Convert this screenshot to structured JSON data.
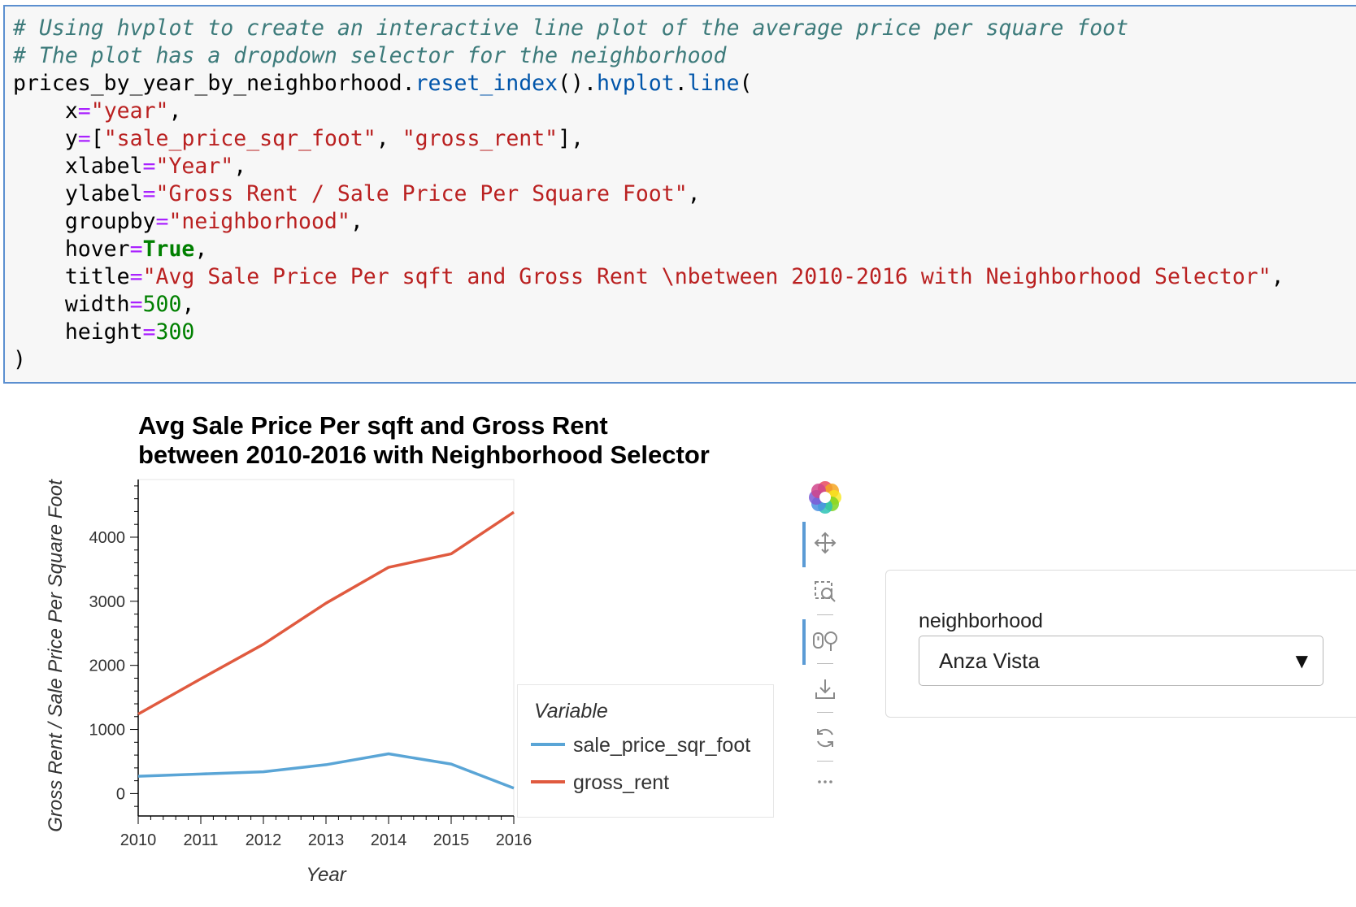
{
  "code_cell": {
    "lines": [
      [
        {
          "t": "# Using hvplot to create an interactive line plot of the average price per square foot",
          "c": "cmt"
        }
      ],
      [
        {
          "t": "# The plot has a dropdown selector for the neighborhood",
          "c": "cmt"
        }
      ],
      [
        {
          "t": "prices_by_year_by_neighborhood.",
          "c": ""
        },
        {
          "t": "reset_index",
          "c": "attr"
        },
        {
          "t": "().",
          "c": ""
        },
        {
          "t": "hvplot",
          "c": "attr"
        },
        {
          "t": ".",
          "c": ""
        },
        {
          "t": "line",
          "c": "attr"
        },
        {
          "t": "(",
          "c": ""
        }
      ],
      [
        {
          "t": "    x",
          "c": ""
        },
        {
          "t": "=",
          "c": "op"
        },
        {
          "t": "\"year\"",
          "c": "str"
        },
        {
          "t": ",",
          "c": ""
        }
      ],
      [
        {
          "t": "    y",
          "c": ""
        },
        {
          "t": "=",
          "c": "op"
        },
        {
          "t": "[",
          "c": ""
        },
        {
          "t": "\"sale_price_sqr_foot\"",
          "c": "str"
        },
        {
          "t": ", ",
          "c": ""
        },
        {
          "t": "\"gross_rent\"",
          "c": "str"
        },
        {
          "t": "],",
          "c": ""
        }
      ],
      [
        {
          "t": "    xlabel",
          "c": ""
        },
        {
          "t": "=",
          "c": "op"
        },
        {
          "t": "\"Year\"",
          "c": "str"
        },
        {
          "t": ",",
          "c": ""
        }
      ],
      [
        {
          "t": "    ylabel",
          "c": ""
        },
        {
          "t": "=",
          "c": "op"
        },
        {
          "t": "\"Gross Rent / Sale Price Per Square Foot\"",
          "c": "str"
        },
        {
          "t": ",",
          "c": ""
        }
      ],
      [
        {
          "t": "    groupby",
          "c": ""
        },
        {
          "t": "=",
          "c": "op"
        },
        {
          "t": "\"neighborhood\"",
          "c": "str"
        },
        {
          "t": ",",
          "c": ""
        }
      ],
      [
        {
          "t": "    hover",
          "c": ""
        },
        {
          "t": "=",
          "c": "op"
        },
        {
          "t": "True",
          "c": "kw"
        },
        {
          "t": ",",
          "c": ""
        }
      ],
      [
        {
          "t": "    title",
          "c": ""
        },
        {
          "t": "=",
          "c": "op"
        },
        {
          "t": "\"Avg Sale Price Per sqft and Gross Rent \\nbetween 2010-2016 with Neighborhood Selector\"",
          "c": "str"
        },
        {
          "t": ",",
          "c": ""
        }
      ],
      [
        {
          "t": "    width",
          "c": ""
        },
        {
          "t": "=",
          "c": "op"
        },
        {
          "t": "500",
          "c": "num"
        },
        {
          "t": ",",
          "c": ""
        }
      ],
      [
        {
          "t": "    height",
          "c": ""
        },
        {
          "t": "=",
          "c": "op"
        },
        {
          "t": "300",
          "c": "num"
        }
      ],
      [
        {
          "t": ")",
          "c": ""
        }
      ]
    ]
  },
  "chart_data": {
    "type": "line",
    "title": "Avg Sale Price Per sqft and Gross Rent\nbetween 2010-2016 with Neighborhood Selector",
    "xlabel": "Year",
    "ylabel": "Gross Rent / Sale Price Per Square Foot",
    "x": [
      2010,
      2011,
      2012,
      2013,
      2014,
      2015,
      2016
    ],
    "xlim": [
      2010,
      2016
    ],
    "ylim": [
      -350,
      4900
    ],
    "yticks": [
      0,
      1000,
      2000,
      3000,
      4000
    ],
    "grid": false,
    "legend": {
      "title": "Variable",
      "position": "right"
    },
    "series": [
      {
        "name": "sale_price_sqr_foot",
        "color": "#5aa5d6",
        "values": [
          270,
          305,
          340,
          450,
          620,
          460,
          85
        ]
      },
      {
        "name": "gross_rent",
        "color": "#e05a3f",
        "values": [
          1240,
          1790,
          2330,
          2970,
          3530,
          3740,
          4390
        ]
      }
    ]
  },
  "toolbar": {
    "tools": [
      {
        "name": "bokeh-logo-icon",
        "active": false
      },
      {
        "name": "pan-tool-icon",
        "active": true
      },
      {
        "name": "box-zoom-tool-icon",
        "active": false
      },
      {
        "name": "wheel-zoom-tool-icon",
        "active": true
      },
      {
        "name": "save-tool-icon",
        "active": false
      },
      {
        "name": "reset-tool-icon",
        "active": false
      },
      {
        "name": "more-tools-icon",
        "active": false
      }
    ]
  },
  "widget": {
    "label": "neighborhood",
    "selected": "Anza Vista",
    "arrow": "▼"
  }
}
